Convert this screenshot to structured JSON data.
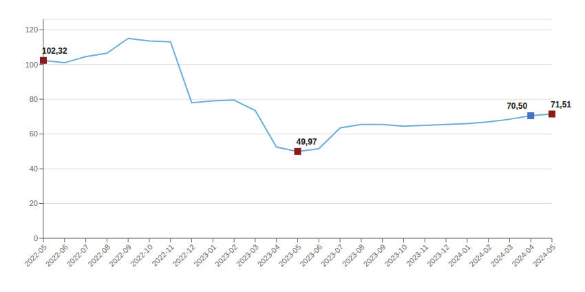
{
  "chart_data": {
    "type": "line",
    "categories": [
      "2022-05",
      "2022-06",
      "2022-07",
      "2022-08",
      "2022-09",
      "2022-10",
      "2022-11",
      "2022-12",
      "2023-01",
      "2023-02",
      "2023-03",
      "2023-04",
      "2023-05",
      "2023-06",
      "2023-07",
      "2023-08",
      "2023-09",
      "2023-10",
      "2023-11",
      "2023-12",
      "2024-01",
      "2024-02",
      "2024-03",
      "2024-04",
      "2024-05"
    ],
    "values": [
      102.32,
      101.0,
      104.5,
      106.5,
      115.0,
      113.5,
      113.0,
      78.0,
      79.0,
      79.5,
      73.5,
      52.5,
      49.97,
      51.5,
      63.5,
      65.5,
      65.5,
      64.5,
      65.0,
      65.5,
      66.0,
      67.0,
      68.5,
      70.5,
      71.51
    ],
    "color": "#6BAED6",
    "ylim": [
      0,
      126
    ],
    "yticks": [
      0,
      20,
      40,
      60,
      80,
      100,
      120
    ],
    "grid": true,
    "annotations": [
      {
        "category": "2022-05",
        "value": 102.32,
        "label": "102,32",
        "color": "#8B1A1A",
        "marker": "square"
      },
      {
        "category": "2023-05",
        "value": 49.97,
        "label": "49,97",
        "color": "#8B1A1A",
        "marker": "square"
      },
      {
        "category": "2024-04",
        "value": 70.5,
        "label": "70,50",
        "color": "#4472C4",
        "marker": "square"
      },
      {
        "category": "2024-05",
        "value": 71.51,
        "label": "71,51",
        "color": "#8B1A1A",
        "marker": "square"
      }
    ]
  }
}
